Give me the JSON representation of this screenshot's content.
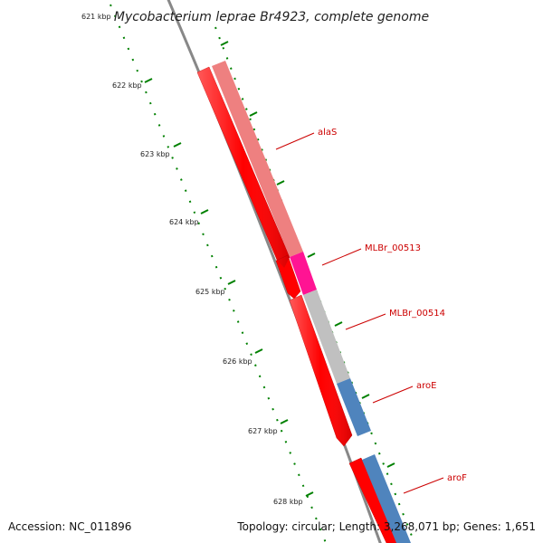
{
  "map": {
    "title": "Mycobacterium leprae Br4923, complete genome",
    "accession": "Accession: NC_011896",
    "summary": "Topology: circular; Length: 3,268,071 bp; Genes: 1,651"
  },
  "ticks": [
    {
      "label": "621 kbp"
    },
    {
      "label": "622 kbp"
    },
    {
      "label": "623 kbp"
    },
    {
      "label": "624 kbp"
    },
    {
      "label": "625 kbp"
    },
    {
      "label": "626 kbp"
    },
    {
      "label": "627 kbp"
    },
    {
      "label": "628 kbp"
    }
  ],
  "genes": [
    {
      "name": "alaS",
      "color": "#ee8080"
    },
    {
      "name": "MLBr_00513",
      "color": "#ff1493"
    },
    {
      "name": "MLBr_00514",
      "color": "#c0c0c0"
    },
    {
      "name": "aroE",
      "color": "#4f84bd"
    },
    {
      "name": "aroF",
      "color": "#4f84bd"
    }
  ],
  "colors": {
    "cds_track": "#ff0000",
    "backbone": "#888888",
    "tick_marks": "#008000",
    "gene_label": "#cc0000"
  }
}
